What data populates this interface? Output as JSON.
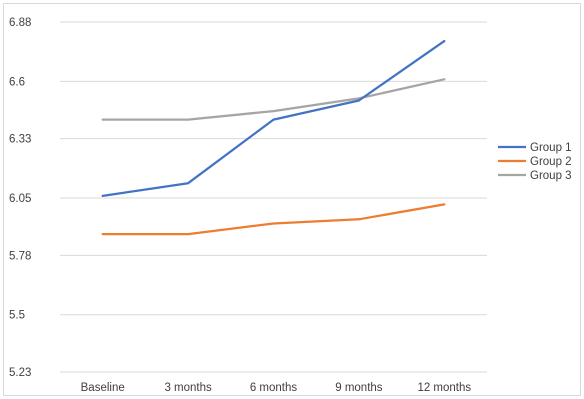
{
  "chart_data": {
    "type": "line",
    "title": "",
    "xlabel": "",
    "ylabel": "",
    "categories": [
      "Baseline",
      "3 months",
      "6 months",
      "9 months",
      "12 months"
    ],
    "y_ticks": [
      "6.88",
      "6.6",
      "6.33",
      "6.05",
      "5.78",
      "5.5",
      "5.23"
    ],
    "ylim": [
      5.23,
      6.88
    ],
    "grid": true,
    "legend_position": "right",
    "series": [
      {
        "name": "Group 1",
        "color": "#4472C4",
        "values": [
          6.06,
          6.12,
          6.42,
          6.51,
          6.79
        ]
      },
      {
        "name": "Group 2",
        "color": "#ED7D31",
        "values": [
          5.88,
          5.88,
          5.93,
          5.95,
          6.02
        ]
      },
      {
        "name": "Group 3",
        "color": "#A5A5A5",
        "values": [
          6.42,
          6.42,
          6.46,
          6.52,
          6.61
        ]
      }
    ]
  }
}
